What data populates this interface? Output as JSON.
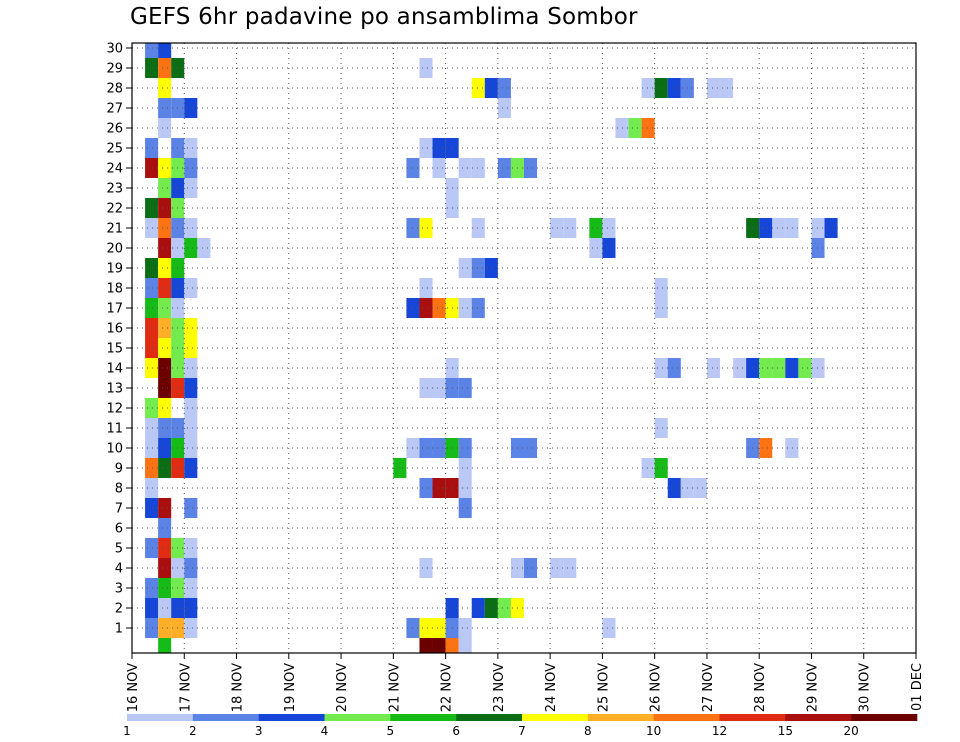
{
  "chart_data": {
    "type": "heatmap",
    "title": "GEFS 6hr padavine po ansamblima Sombor",
    "xlabel": "",
    "ylabel": "",
    "y_members": [
      1,
      2,
      3,
      4,
      5,
      6,
      7,
      8,
      9,
      10,
      11,
      12,
      13,
      14,
      15,
      16,
      17,
      18,
      19,
      20,
      21,
      22,
      23,
      24,
      25,
      26,
      27,
      28,
      29,
      30
    ],
    "x_tick_labels": [
      "16 NOV",
      "17 NOV",
      "18 NOV",
      "19 NOV",
      "20 NOV",
      "21 NOV",
      "22 NOV",
      "23 NOV",
      "24 NOV",
      "25 NOV",
      "26 NOV",
      "27 NOV",
      "28 NOV",
      "29 NOV",
      "30 NOV",
      "01 DEC"
    ],
    "x_time_unit": "6-hour step after 16 NOV 00UTC",
    "grid": true,
    "colorbar": {
      "placement": "bottom",
      "levels": [
        "1",
        "2",
        "3",
        "4",
        "5",
        "6",
        "7",
        "8",
        "10",
        "12",
        "15",
        "20"
      ],
      "colors": [
        "#b9c8f5",
        "#5b83e6",
        "#1546d8",
        "#73ea4e",
        "#17bb17",
        "#0c6e14",
        "#ffff00",
        "#ffae28",
        "#fd7313",
        "#e02c13",
        "#aa0f10",
        "#6c0000"
      ]
    },
    "cells": [
      [
        30,
        1,
        2
      ],
      [
        30,
        2,
        3
      ],
      [
        29,
        1,
        6
      ],
      [
        29,
        2,
        9
      ],
      [
        29,
        3,
        6
      ],
      [
        29,
        22,
        1
      ],
      [
        28,
        2,
        7
      ],
      [
        28,
        26,
        7
      ],
      [
        28,
        27,
        3
      ],
      [
        28,
        28,
        2
      ],
      [
        28,
        39,
        1
      ],
      [
        28,
        40,
        6
      ],
      [
        28,
        41,
        3
      ],
      [
        28,
        42,
        2
      ],
      [
        28,
        44,
        1
      ],
      [
        28,
        45,
        1
      ],
      [
        27,
        2,
        2
      ],
      [
        27,
        3,
        2
      ],
      [
        27,
        4,
        3
      ],
      [
        27,
        28,
        1
      ],
      [
        26,
        2,
        1
      ],
      [
        26,
        37,
        1
      ],
      [
        26,
        38,
        4
      ],
      [
        26,
        39,
        9
      ],
      [
        25,
        1,
        2
      ],
      [
        25,
        3,
        2
      ],
      [
        25,
        4,
        1
      ],
      [
        25,
        22,
        1
      ],
      [
        25,
        23,
        3
      ],
      [
        25,
        24,
        3
      ],
      [
        24,
        1,
        11
      ],
      [
        24,
        2,
        7
      ],
      [
        24,
        3,
        4
      ],
      [
        24,
        4,
        2
      ],
      [
        24,
        21,
        2
      ],
      [
        24,
        23,
        1
      ],
      [
        24,
        25,
        1
      ],
      [
        24,
        26,
        1
      ],
      [
        24,
        28,
        2
      ],
      [
        24,
        29,
        4
      ],
      [
        24,
        30,
        2
      ],
      [
        23,
        2,
        4
      ],
      [
        23,
        3,
        3
      ],
      [
        23,
        4,
        1
      ],
      [
        23,
        24,
        1
      ],
      [
        22,
        1,
        6
      ],
      [
        22,
        2,
        11
      ],
      [
        22,
        3,
        4
      ],
      [
        22,
        24,
        1
      ],
      [
        21,
        1,
        1
      ],
      [
        21,
        2,
        9
      ],
      [
        21,
        3,
        2
      ],
      [
        21,
        4,
        1
      ],
      [
        21,
        21,
        2
      ],
      [
        21,
        22,
        7
      ],
      [
        21,
        26,
        1
      ],
      [
        21,
        32,
        1
      ],
      [
        21,
        33,
        1
      ],
      [
        21,
        35,
        5
      ],
      [
        21,
        36,
        1
      ],
      [
        21,
        47,
        6
      ],
      [
        21,
        48,
        3
      ],
      [
        21,
        49,
        1
      ],
      [
        21,
        50,
        1
      ],
      [
        21,
        52,
        1
      ],
      [
        21,
        53,
        3
      ],
      [
        20,
        2,
        11
      ],
      [
        20,
        3,
        1
      ],
      [
        20,
        4,
        5
      ],
      [
        20,
        5,
        1
      ],
      [
        20,
        35,
        1
      ],
      [
        20,
        36,
        3
      ],
      [
        20,
        52,
        2
      ],
      [
        19,
        1,
        6
      ],
      [
        19,
        2,
        7
      ],
      [
        19,
        3,
        5
      ],
      [
        19,
        25,
        1
      ],
      [
        19,
        26,
        2
      ],
      [
        19,
        27,
        3
      ],
      [
        18,
        1,
        2
      ],
      [
        18,
        2,
        10
      ],
      [
        18,
        3,
        3
      ],
      [
        18,
        4,
        1
      ],
      [
        18,
        22,
        1
      ],
      [
        18,
        40,
        1
      ],
      [
        17,
        1,
        5
      ],
      [
        17,
        2,
        4
      ],
      [
        17,
        3,
        1
      ],
      [
        17,
        21,
        3
      ],
      [
        17,
        22,
        11
      ],
      [
        17,
        23,
        9
      ],
      [
        17,
        24,
        7
      ],
      [
        17,
        25,
        1
      ],
      [
        17,
        26,
        2
      ],
      [
        17,
        40,
        1
      ],
      [
        16,
        1,
        10
      ],
      [
        16,
        2,
        8
      ],
      [
        16,
        3,
        4
      ],
      [
        16,
        4,
        7
      ],
      [
        15,
        1,
        10
      ],
      [
        15,
        2,
        7
      ],
      [
        15,
        3,
        4
      ],
      [
        15,
        4,
        7
      ],
      [
        14,
        1,
        7
      ],
      [
        14,
        2,
        12
      ],
      [
        14,
        3,
        4
      ],
      [
        14,
        4,
        1
      ],
      [
        14,
        24,
        1
      ],
      [
        14,
        40,
        1
      ],
      [
        14,
        41,
        2
      ],
      [
        14,
        44,
        1
      ],
      [
        14,
        46,
        1
      ],
      [
        14,
        47,
        3
      ],
      [
        14,
        48,
        4
      ],
      [
        14,
        49,
        4
      ],
      [
        14,
        50,
        3
      ],
      [
        14,
        51,
        4
      ],
      [
        14,
        52,
        1
      ],
      [
        13,
        2,
        12
      ],
      [
        13,
        3,
        10
      ],
      [
        13,
        4,
        3
      ],
      [
        13,
        22,
        1
      ],
      [
        13,
        23,
        1
      ],
      [
        13,
        24,
        2
      ],
      [
        13,
        25,
        2
      ],
      [
        12,
        1,
        4
      ],
      [
        12,
        2,
        7
      ],
      [
        12,
        4,
        1
      ],
      [
        11,
        1,
        1
      ],
      [
        11,
        2,
        2
      ],
      [
        11,
        3,
        2
      ],
      [
        11,
        4,
        1
      ],
      [
        11,
        40,
        1
      ],
      [
        10,
        1,
        1
      ],
      [
        10,
        2,
        3
      ],
      [
        10,
        3,
        5
      ],
      [
        10,
        4,
        1
      ],
      [
        10,
        21,
        1
      ],
      [
        10,
        22,
        2
      ],
      [
        10,
        23,
        2
      ],
      [
        10,
        24,
        5
      ],
      [
        10,
        25,
        2
      ],
      [
        10,
        29,
        2
      ],
      [
        10,
        30,
        2
      ],
      [
        10,
        47,
        2
      ],
      [
        10,
        48,
        9
      ],
      [
        10,
        50,
        1
      ],
      [
        9,
        1,
        9
      ],
      [
        9,
        2,
        6
      ],
      [
        9,
        3,
        10
      ],
      [
        9,
        4,
        3
      ],
      [
        9,
        20,
        5
      ],
      [
        9,
        25,
        1
      ],
      [
        9,
        39,
        1
      ],
      [
        9,
        40,
        5
      ],
      [
        8,
        1,
        1
      ],
      [
        8,
        22,
        2
      ],
      [
        8,
        23,
        11
      ],
      [
        8,
        24,
        11
      ],
      [
        8,
        25,
        1
      ],
      [
        8,
        41,
        3
      ],
      [
        8,
        42,
        1
      ],
      [
        8,
        43,
        1
      ],
      [
        7,
        1,
        3
      ],
      [
        7,
        2,
        11
      ],
      [
        7,
        4,
        2
      ],
      [
        7,
        25,
        2
      ],
      [
        6,
        2,
        2
      ],
      [
        5,
        1,
        2
      ],
      [
        5,
        2,
        10
      ],
      [
        5,
        3,
        4
      ],
      [
        5,
        4,
        1
      ],
      [
        4,
        2,
        11
      ],
      [
        4,
        3,
        1
      ],
      [
        4,
        4,
        2
      ],
      [
        4,
        22,
        1
      ],
      [
        4,
        29,
        1
      ],
      [
        4,
        30,
        2
      ],
      [
        4,
        32,
        1
      ],
      [
        4,
        33,
        1
      ],
      [
        3,
        1,
        2
      ],
      [
        3,
        2,
        5
      ],
      [
        3,
        3,
        4
      ],
      [
        3,
        4,
        1
      ],
      [
        2,
        1,
        3
      ],
      [
        2,
        2,
        1
      ],
      [
        2,
        3,
        3
      ],
      [
        2,
        4,
        3
      ],
      [
        2,
        24,
        3
      ],
      [
        2,
        26,
        3
      ],
      [
        2,
        27,
        6
      ],
      [
        2,
        28,
        4
      ],
      [
        2,
        29,
        7
      ],
      [
        1,
        1,
        2
      ],
      [
        1,
        2,
        8
      ],
      [
        1,
        3,
        8
      ],
      [
        1,
        4,
        1
      ],
      [
        1,
        21,
        2
      ],
      [
        1,
        22,
        7
      ],
      [
        1,
        23,
        7
      ],
      [
        1,
        24,
        2
      ],
      [
        1,
        25,
        1
      ],
      [
        1,
        36,
        1
      ],
      [
        0,
        2,
        5
      ],
      [
        0,
        22,
        12
      ],
      [
        0,
        23,
        12
      ],
      [
        0,
        24,
        9
      ],
      [
        0,
        25,
        1
      ]
    ]
  }
}
